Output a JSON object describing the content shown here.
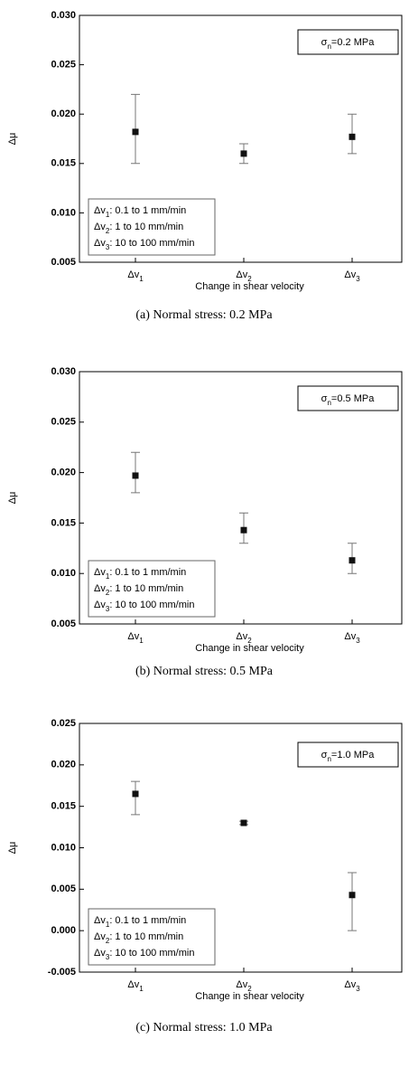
{
  "chart_data": [
    {
      "type": "errorbar",
      "caption": "(a) Normal stress: 0.2 MPa",
      "annotation": "σn=0.2 MPa",
      "xlabel": "Change in shear velocity",
      "ylabel": "Δμ",
      "categories": [
        "Δv1",
        "Δv2",
        "Δv3"
      ],
      "values": [
        0.0182,
        0.016,
        0.0177
      ],
      "error_low": [
        0.015,
        0.015,
        0.016
      ],
      "error_high": [
        0.022,
        0.017,
        0.02
      ],
      "color": "#111111",
      "legend_lines": [
        "Δv1: 0.1 to 1 mm/min",
        "Δv2: 1 to 10 mm/min",
        "Δv3: 10 to 100 mm/min"
      ],
      "ylim": [
        0.005,
        0.03
      ],
      "yticks": [
        0.005,
        {
          "value": 0.01,
          "label": "0.010"
        },
        0.015,
        {
          "value": 0.02,
          "label": "0.020"
        },
        0.025,
        {
          "value": 0.03,
          "label": "0.030"
        }
      ]
    },
    {
      "type": "errorbar",
      "caption": "(b) Normal stress: 0.5 MPa",
      "annotation": "σn=0.5 MPa",
      "xlabel": "Change in shear velocity",
      "ylabel": "Δμ",
      "categories": [
        "Δv1",
        "Δv2",
        "Δv3"
      ],
      "values": [
        0.0197,
        0.0143,
        0.0113
      ],
      "error_low": [
        0.018,
        0.013,
        0.01
      ],
      "error_high": [
        0.022,
        0.016,
        0.013
      ],
      "color": "#111111",
      "legend_lines": [
        "Δv1: 0.1 to 1 mm/min",
        "Δv2: 1 to 10 mm/min",
        "Δv3: 10 to 100 mm/min"
      ],
      "ylim": [
        0.005,
        0.03
      ],
      "yticks": [
        0.005,
        {
          "value": 0.01,
          "label": "0.010"
        },
        0.015,
        {
          "value": 0.02,
          "label": "0.020"
        },
        0.025,
        {
          "value": 0.03,
          "label": "0.030"
        }
      ]
    },
    {
      "type": "errorbar",
      "caption": "(c) Normal stress: 1.0 MPa",
      "annotation": "σn=1.0 MPa",
      "xlabel": "Change in shear velocity",
      "ylabel": "Δμ",
      "categories": [
        "Δv1",
        "Δv2",
        "Δv3"
      ],
      "values": [
        0.0165,
        0.013,
        0.0043
      ],
      "error_low": [
        0.014,
        0.0128,
        0.0
      ],
      "error_high": [
        0.018,
        0.0132,
        0.007
      ],
      "color": "#111111",
      "legend_lines": [
        "Δv1: 0.1 to 1 mm/min",
        "Δv2: 1 to 10 mm/min",
        "Δv3: 10 to 100 mm/min"
      ],
      "ylim": [
        -0.005,
        0.025
      ],
      "yticks": [
        -0.005,
        {
          "value": 0,
          "label": "0.000"
        },
        0.005,
        {
          "value": 0.01,
          "label": "0.010"
        },
        0.015,
        {
          "value": 0.02,
          "label": "0.020"
        },
        0.025
      ]
    }
  ]
}
